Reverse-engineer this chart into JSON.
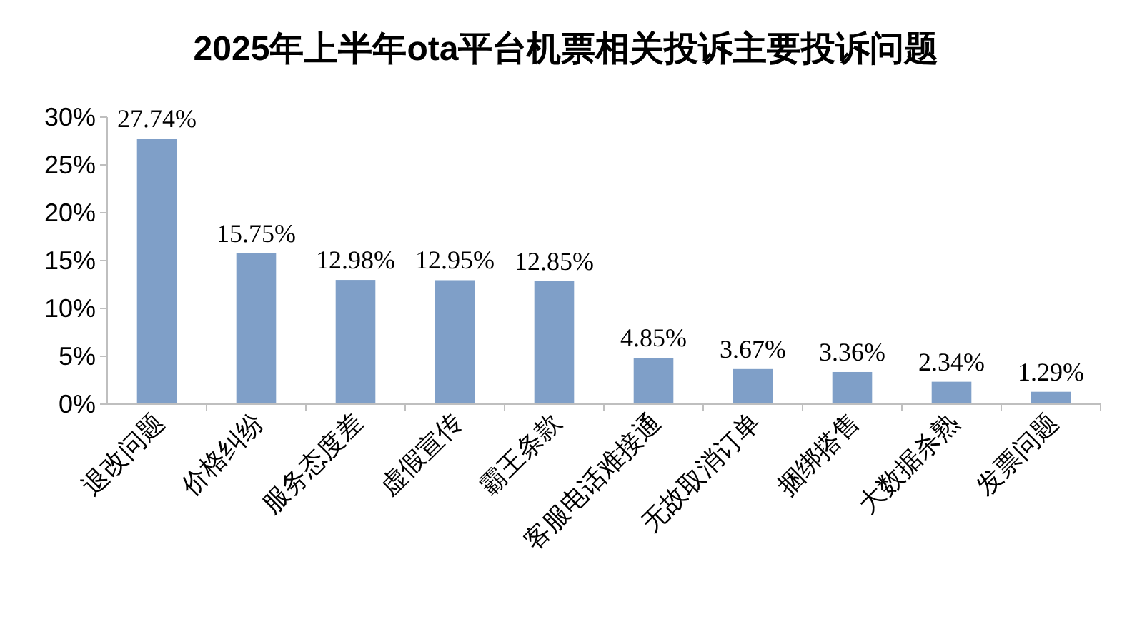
{
  "chart_data": {
    "type": "bar",
    "title": "2025年上半年ota平台机票相关投诉主要投诉问题",
    "categories": [
      "退改问题",
      "价格纠纷",
      "服务态度差",
      "虚假宣传",
      "霸王条款",
      "客服电话难接通",
      "无故取消订单",
      "捆绑搭售",
      "大数据杀熟",
      "发票问题"
    ],
    "values": [
      27.74,
      15.75,
      12.98,
      12.95,
      12.85,
      4.85,
      3.67,
      3.36,
      2.34,
      1.29
    ],
    "value_labels": [
      "27.74%",
      "15.75%",
      "12.98%",
      "12.95%",
      "12.85%",
      "4.85%",
      "3.67%",
      "3.36%",
      "2.34%",
      "1.29%"
    ],
    "color": "#7f9fc8",
    "ylim": [
      0,
      30
    ],
    "yticks": [
      {
        "value": 0,
        "label": "0%"
      },
      {
        "value": 5,
        "label": "5%"
      },
      {
        "value": 10,
        "label": "10%"
      },
      {
        "value": 15,
        "label": "15%"
      },
      {
        "value": 20,
        "label": "20%"
      },
      {
        "value": 25,
        "label": "25%"
      },
      {
        "value": 30,
        "label": "30%"
      }
    ],
    "grid": false
  }
}
